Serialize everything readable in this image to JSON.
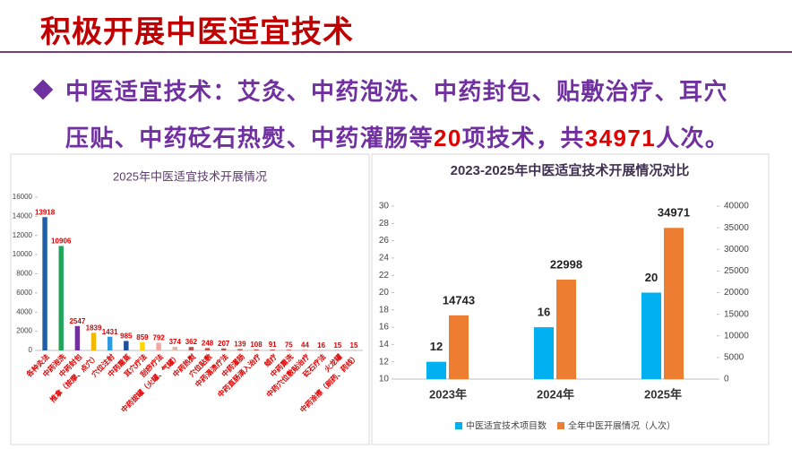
{
  "header": {
    "title": "积极开展中医适宜技术"
  },
  "bullet": {
    "text_before": "中医适宜技术：艾灸、中药泡洗、中药封包、贴敷治疗、耳穴压贴、中药砭石热熨、中药灌肠等",
    "count": 20,
    "text_middle": "项技术，共",
    "total": 34971,
    "text_end": "人次。"
  },
  "chart_data": [
    {
      "type": "bar",
      "title": "2025年中医适宜技术开展情况",
      "categories": [
        "各种灸法",
        "中药泡洗",
        "中药封包",
        "推拿（按摩、点穴）",
        "穴位注射",
        "中药熏蒸",
        "耳穴疗法",
        "刮痧疗法",
        "中药拔罐（火罐、气罐）",
        "中药热熨",
        "穴位贴敷",
        "中药溻渍疗法",
        "中药灌肠",
        "中药直肠滴入治疗",
        "蜡疗",
        "中药熏洗",
        "中药穴位敷贴治疗",
        "砭石疗法",
        "火龙罐",
        "中药涂擦（刷药、药线）"
      ],
      "values": [
        13918,
        10906,
        2547,
        1839,
        1431,
        985,
        859,
        792,
        374,
        362,
        248,
        207,
        139,
        108,
        91,
        75,
        44,
        16,
        15,
        15
      ],
      "colors": [
        "#1f5fa8",
        "#22a55a",
        "#7030a0",
        "#f5b800",
        "#2e9be0",
        "#1f4e9a",
        "#ffd700",
        "#f4a6a6",
        "#e6b8a2",
        "#c0504d",
        "#c0504d",
        "#c0504d",
        "#c0504d",
        "#c0504d",
        "#c0504d",
        "#c0504d",
        "#c0504d",
        "#c0504d",
        "#c0504d",
        "#c0504d"
      ],
      "ylim": [
        0,
        16000
      ],
      "yticks": [
        0,
        2000,
        4000,
        6000,
        8000,
        10000,
        12000,
        14000,
        16000
      ]
    },
    {
      "type": "bar",
      "title": "2023-2025年中医适宜技术开展情况对比",
      "categories": [
        "2023年",
        "2024年",
        "2025年"
      ],
      "series": [
        {
          "name": "中医适宜技术项目数",
          "color": "#00b0f0",
          "values": [
            12,
            16,
            20
          ]
        },
        {
          "name": "全年中医开展情况（人次）",
          "color": "#ed7d31",
          "values": [
            14743,
            22998,
            34971
          ],
          "axis": "y2"
        }
      ],
      "ylim": [
        10,
        30
      ],
      "yticks": [
        10,
        12,
        14,
        16,
        18,
        20,
        22,
        24,
        26,
        28,
        30
      ],
      "y2lim": [
        0,
        40000
      ],
      "y2ticks": [
        0,
        5000,
        10000,
        15000,
        20000,
        25000,
        30000,
        35000,
        40000
      ],
      "legend": "bottom"
    }
  ]
}
